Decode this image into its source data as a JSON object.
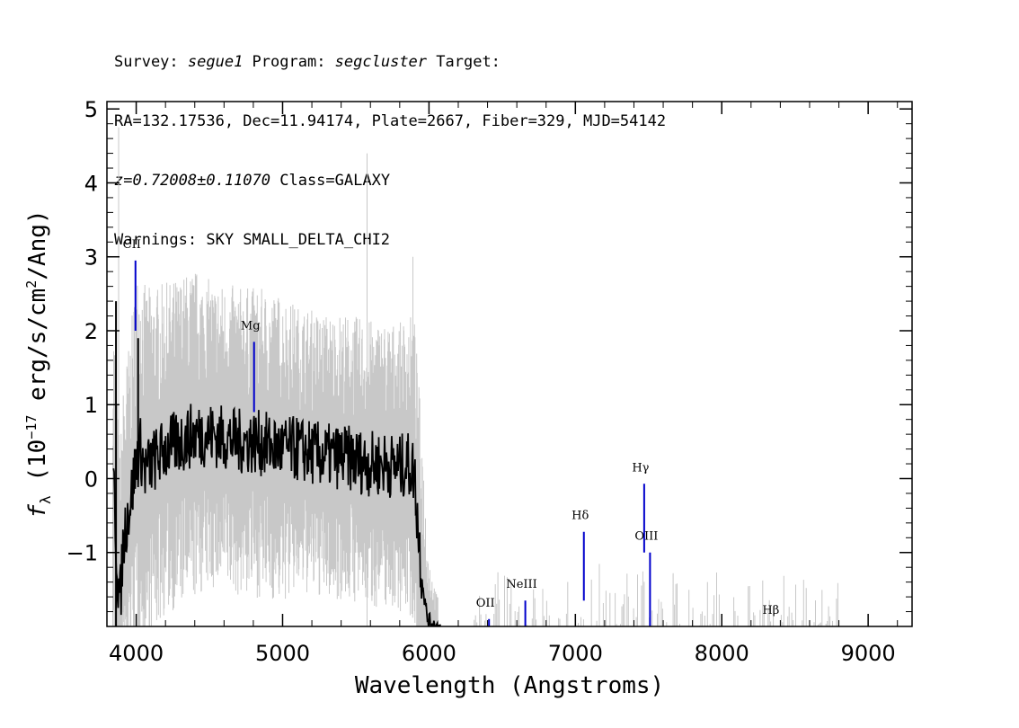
{
  "header": {
    "line1": {
      "survey_label": "Survey: ",
      "survey": "segue1",
      "program_label": " Program: ",
      "program": "segcluster",
      "target_label": " Target:"
    },
    "line2": "RA=132.17536, Dec=11.94174, Plate=2667, Fiber=329, MJD=54142",
    "line3": {
      "z": "z=0.72008±0.11070",
      "class": " Class=GALAXY"
    },
    "line4": "Warnings: SKY SMALL_DELTA_CHI2"
  },
  "chart_data": {
    "type": "line",
    "xlabel": "Wavelength (Angstroms)",
    "ylabel": "f_λ (10^-17 erg/s/cm^2/Ang)",
    "xlim": [
      3800,
      9300
    ],
    "ylim": [
      -2.0,
      5.1
    ],
    "x_ticks": [
      4000,
      5000,
      6000,
      7000,
      8000,
      9000
    ],
    "y_ticks": [
      -1,
      0,
      1,
      2,
      3,
      4,
      5
    ],
    "series": [
      {
        "role": "error",
        "color": "#c8c8c8",
        "x": [
          3860,
          3900,
          3950,
          4000,
          4050,
          4100,
          4200,
          4300,
          4400,
          4500,
          4600,
          4700,
          4800,
          4900,
          5000,
          5100,
          5200,
          5300,
          5400,
          5500,
          5600,
          5700,
          5800,
          5900,
          5950,
          6000,
          6050
        ],
        "y": [
          1.6,
          1.4,
          1.5,
          1.7,
          1.7,
          1.6,
          1.5,
          1.5,
          1.5,
          1.4,
          1.4,
          1.4,
          1.4,
          1.4,
          1.4,
          1.3,
          1.3,
          1.3,
          1.3,
          1.3,
          1.3,
          1.3,
          1.3,
          1.4,
          1.4,
          0.6,
          0.3
        ]
      },
      {
        "role": "flux",
        "color": "#000000",
        "x": [
          3850,
          3870,
          3890,
          3910,
          3930,
          3950,
          3970,
          3990,
          4010,
          4030,
          4060,
          4100,
          4150,
          4200,
          4300,
          4400,
          4500,
          4600,
          4700,
          4800,
          4900,
          5000,
          5100,
          5200,
          5300,
          5400,
          5500,
          5600,
          5700,
          5800,
          5850,
          5900,
          5930,
          5960,
          5990,
          6020,
          6050
        ],
        "y": [
          -0.2,
          -1.2,
          -1.7,
          -0.9,
          -0.6,
          -0.4,
          -0.2,
          0.1,
          0.3,
          0.4,
          0.1,
          0.2,
          0.3,
          0.4,
          0.5,
          0.6,
          0.6,
          0.55,
          0.5,
          0.5,
          0.45,
          0.4,
          0.4,
          0.35,
          0.3,
          0.3,
          0.25,
          0.2,
          0.2,
          0.15,
          0.2,
          0.1,
          -0.8,
          -1.5,
          -1.9,
          -1.95,
          -2.0
        ]
      }
    ],
    "annotations": [
      {
        "label": "CII",
        "x": 3995,
        "ymin": 2.0,
        "ymax": 2.95
      },
      {
        "label": "Mg",
        "x": 4805,
        "ymin": 0.9,
        "ymax": 1.85
      },
      {
        "label": "OII",
        "x": 6410,
        "ymin": -2.0,
        "ymax": -1.9
      },
      {
        "label": "NeIII",
        "x": 6658,
        "ymin": -2.0,
        "ymax": -1.65
      },
      {
        "label": "Hδ",
        "x": 7058,
        "ymin": -1.65,
        "ymax": -0.72
      },
      {
        "label": "Hγ",
        "x": 7470,
        "ymin": -1.0,
        "ymax": -0.07
      },
      {
        "label": "OIII",
        "x": 7510,
        "ymin": -2.0,
        "ymax": -1.0
      },
      {
        "label": "Hβ",
        "x": 8360,
        "ymin": -2.0,
        "ymax": -2.0
      }
    ],
    "grid": false,
    "colors": {
      "flux": "#000000",
      "error": "#c8c8c8",
      "lines": "#0000cc"
    }
  }
}
